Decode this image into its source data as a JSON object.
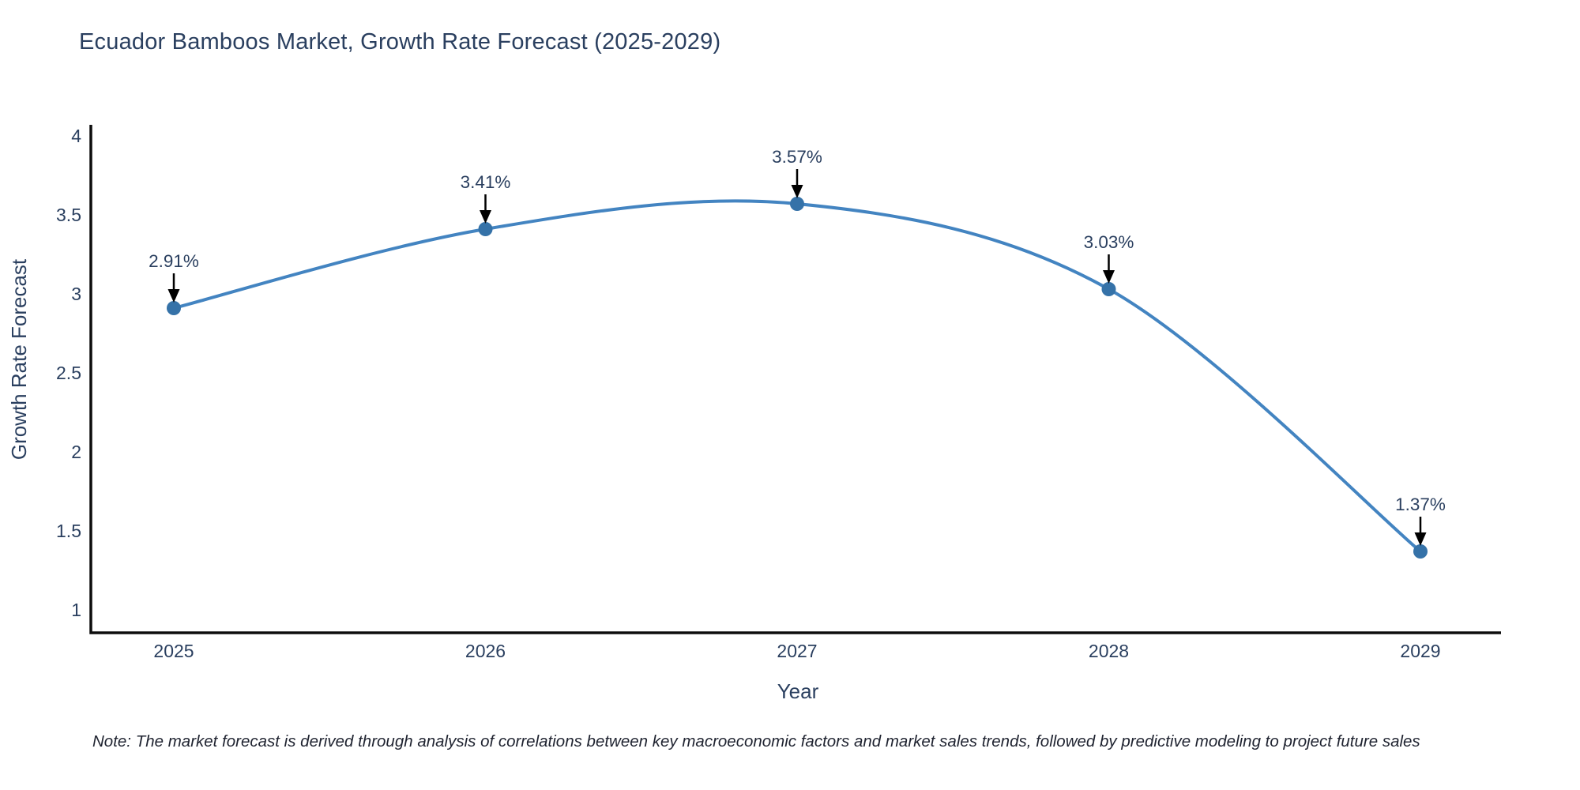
{
  "chart_data": {
    "type": "line",
    "title": "Ecuador Bamboos Market, Growth Rate Forecast (2025-2029)",
    "xlabel": "Year",
    "ylabel": "Growth Rate Forecast",
    "x": [
      2025,
      2026,
      2027,
      2028,
      2029
    ],
    "x_tick_labels": [
      "2025",
      "2026",
      "2027",
      "2028",
      "2029"
    ],
    "series": [
      {
        "name": "Growth Rate Forecast",
        "values": [
          2.91,
          3.41,
          3.57,
          3.03,
          1.37
        ],
        "point_labels": [
          "2.91%",
          "3.41%",
          "3.57%",
          "3.03%",
          "1.37%"
        ]
      }
    ],
    "y_ticks": [
      1,
      1.5,
      2,
      2.5,
      3,
      3.5,
      4
    ],
    "y_tick_labels": [
      "1",
      "1.5",
      "2",
      "2.5",
      "3",
      "3.5",
      "4"
    ],
    "y_range": [
      0.855,
      4.07
    ],
    "grid": false,
    "legend": "none",
    "line_shape": "spline",
    "colors": {
      "line": "#4384c1",
      "marker": "#3572a8",
      "arrow": "#000000",
      "text": "#2a3f5f",
      "axis": "#0d0d0d"
    }
  },
  "note": {
    "text": "Note: The market forecast is derived through analysis of correlations between key macroeconomic factors and market sales trends, followed by predictive modeling to project future sales"
  }
}
